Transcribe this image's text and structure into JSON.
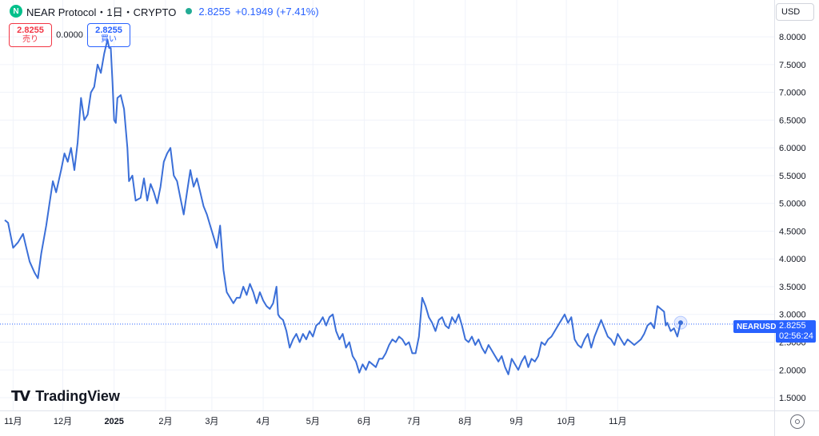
{
  "header": {
    "logo_letter": "N",
    "title": "NEAR Protocol・1日・CRYPTO",
    "price": "2.8255",
    "change": "+0.1949",
    "change_pct": "(+7.41%)"
  },
  "quote": {
    "sell_value": "2.8255",
    "sell_label": "売り",
    "spread": "0.0000",
    "buy_value": "2.8255",
    "buy_label": "買い"
  },
  "currency": "USD",
  "watermark": {
    "icon": "TV",
    "text": "TradingView"
  },
  "last_price": {
    "symbol_label": "NEARUSD",
    "value": "2.8255",
    "countdown": "02:56:24"
  },
  "colors": {
    "line": "#3b6fd8",
    "accent": "#2962ff",
    "sell": "#f23645",
    "grid": "#f0f3fa",
    "logo": "#00c08b"
  },
  "chart_data": {
    "type": "line",
    "series": [
      {
        "values": [
          [
            0,
            4.7
          ],
          [
            2,
            4.65
          ],
          [
            5,
            4.2
          ],
          [
            8,
            4.3
          ],
          [
            11,
            4.45
          ],
          [
            13,
            4.2
          ],
          [
            15,
            3.95
          ],
          [
            18,
            3.75
          ],
          [
            20,
            3.65
          ],
          [
            22,
            4.1
          ],
          [
            25,
            4.6
          ],
          [
            27,
            5.0
          ],
          [
            29,
            5.4
          ],
          [
            31,
            5.2
          ],
          [
            34,
            5.6
          ],
          [
            36,
            5.9
          ],
          [
            38,
            5.75
          ],
          [
            40,
            6.0
          ],
          [
            42,
            5.6
          ],
          [
            44,
            6.1
          ],
          [
            46,
            6.9
          ],
          [
            48,
            6.5
          ],
          [
            50,
            6.6
          ],
          [
            52,
            7.0
          ],
          [
            54,
            7.1
          ],
          [
            56,
            7.5
          ],
          [
            58,
            7.35
          ],
          [
            60,
            7.7
          ],
          [
            62,
            7.95
          ],
          [
            63,
            7.8
          ],
          [
            64,
            7.8
          ],
          [
            65,
            7.2
          ],
          [
            66,
            6.5
          ],
          [
            67,
            6.45
          ],
          [
            68,
            6.9
          ],
          [
            70,
            6.95
          ],
          [
            72,
            6.7
          ],
          [
            74,
            6.0
          ],
          [
            75,
            5.4
          ],
          [
            77,
            5.5
          ],
          [
            79,
            5.05
          ],
          [
            82,
            5.1
          ],
          [
            84,
            5.45
          ],
          [
            86,
            5.05
          ],
          [
            88,
            5.35
          ],
          [
            90,
            5.2
          ],
          [
            92,
            5.0
          ],
          [
            94,
            5.3
          ],
          [
            96,
            5.75
          ],
          [
            98,
            5.9
          ],
          [
            100,
            6.0
          ],
          [
            102,
            5.5
          ],
          [
            104,
            5.4
          ],
          [
            106,
            5.1
          ],
          [
            108,
            4.8
          ],
          [
            110,
            5.2
          ],
          [
            112,
            5.6
          ],
          [
            114,
            5.3
          ],
          [
            116,
            5.45
          ],
          [
            118,
            5.2
          ],
          [
            120,
            4.95
          ],
          [
            122,
            4.8
          ],
          [
            124,
            4.6
          ],
          [
            126,
            4.4
          ],
          [
            128,
            4.2
          ],
          [
            130,
            4.6
          ],
          [
            132,
            3.8
          ],
          [
            134,
            3.4
          ],
          [
            136,
            3.3
          ],
          [
            138,
            3.2
          ],
          [
            140,
            3.3
          ],
          [
            142,
            3.3
          ],
          [
            144,
            3.5
          ],
          [
            146,
            3.35
          ],
          [
            148,
            3.55
          ],
          [
            150,
            3.4
          ],
          [
            152,
            3.2
          ],
          [
            154,
            3.4
          ],
          [
            156,
            3.25
          ],
          [
            158,
            3.15
          ],
          [
            160,
            3.1
          ],
          [
            162,
            3.2
          ],
          [
            164,
            3.5
          ],
          [
            165,
            3.0
          ],
          [
            166,
            2.95
          ],
          [
            168,
            2.9
          ],
          [
            170,
            2.7
          ],
          [
            172,
            2.4
          ],
          [
            174,
            2.55
          ],
          [
            176,
            2.65
          ],
          [
            178,
            2.5
          ],
          [
            180,
            2.65
          ],
          [
            182,
            2.55
          ],
          [
            184,
            2.7
          ],
          [
            186,
            2.6
          ],
          [
            188,
            2.8
          ],
          [
            190,
            2.85
          ],
          [
            192,
            2.95
          ],
          [
            194,
            2.8
          ],
          [
            196,
            2.95
          ],
          [
            198,
            3.0
          ],
          [
            200,
            2.7
          ],
          [
            202,
            2.55
          ],
          [
            204,
            2.65
          ],
          [
            206,
            2.4
          ],
          [
            208,
            2.5
          ],
          [
            210,
            2.25
          ],
          [
            212,
            2.15
          ],
          [
            214,
            1.95
          ],
          [
            216,
            2.1
          ],
          [
            218,
            2.0
          ],
          [
            220,
            2.15
          ],
          [
            222,
            2.1
          ],
          [
            224,
            2.05
          ],
          [
            226,
            2.2
          ],
          [
            228,
            2.2
          ],
          [
            230,
            2.3
          ],
          [
            232,
            2.45
          ],
          [
            234,
            2.55
          ],
          [
            236,
            2.5
          ],
          [
            238,
            2.6
          ],
          [
            240,
            2.55
          ],
          [
            242,
            2.45
          ],
          [
            244,
            2.5
          ],
          [
            246,
            2.3
          ],
          [
            248,
            2.3
          ],
          [
            250,
            2.6
          ],
          [
            252,
            3.3
          ],
          [
            254,
            3.15
          ],
          [
            256,
            2.95
          ],
          [
            258,
            2.85
          ],
          [
            260,
            2.7
          ],
          [
            262,
            2.9
          ],
          [
            264,
            2.95
          ],
          [
            266,
            2.8
          ],
          [
            268,
            2.75
          ],
          [
            270,
            2.95
          ],
          [
            272,
            2.85
          ],
          [
            274,
            3.0
          ],
          [
            276,
            2.8
          ],
          [
            278,
            2.55
          ],
          [
            280,
            2.5
          ],
          [
            282,
            2.6
          ],
          [
            284,
            2.45
          ],
          [
            286,
            2.55
          ],
          [
            288,
            2.4
          ],
          [
            290,
            2.3
          ],
          [
            292,
            2.45
          ],
          [
            294,
            2.35
          ],
          [
            296,
            2.25
          ],
          [
            298,
            2.15
          ],
          [
            300,
            2.25
          ],
          [
            302,
            2.05
          ],
          [
            304,
            1.92
          ],
          [
            306,
            2.2
          ],
          [
            308,
            2.1
          ],
          [
            310,
            2.0
          ],
          [
            312,
            2.15
          ],
          [
            314,
            2.25
          ],
          [
            316,
            2.05
          ],
          [
            318,
            2.2
          ],
          [
            320,
            2.15
          ],
          [
            322,
            2.25
          ],
          [
            324,
            2.5
          ],
          [
            326,
            2.45
          ],
          [
            328,
            2.55
          ],
          [
            330,
            2.6
          ],
          [
            332,
            2.7
          ],
          [
            334,
            2.8
          ],
          [
            336,
            2.9
          ],
          [
            338,
            3.0
          ],
          [
            340,
            2.85
          ],
          [
            342,
            2.95
          ],
          [
            344,
            2.55
          ],
          [
            346,
            2.45
          ],
          [
            348,
            2.4
          ],
          [
            350,
            2.55
          ],
          [
            352,
            2.65
          ],
          [
            354,
            2.4
          ],
          [
            356,
            2.6
          ],
          [
            358,
            2.75
          ],
          [
            360,
            2.9
          ],
          [
            362,
            2.75
          ],
          [
            364,
            2.6
          ],
          [
            366,
            2.55
          ],
          [
            368,
            2.45
          ],
          [
            370,
            2.65
          ],
          [
            372,
            2.55
          ],
          [
            374,
            2.45
          ],
          [
            376,
            2.55
          ],
          [
            378,
            2.5
          ],
          [
            380,
            2.45
          ],
          [
            382,
            2.5
          ],
          [
            384,
            2.55
          ],
          [
            386,
            2.65
          ],
          [
            388,
            2.8
          ],
          [
            390,
            2.85
          ],
          [
            392,
            2.75
          ],
          [
            394,
            3.15
          ],
          [
            396,
            3.1
          ],
          [
            398,
            3.05
          ],
          [
            399,
            2.8
          ],
          [
            400,
            2.85
          ],
          [
            402,
            2.7
          ],
          [
            404,
            2.75
          ],
          [
            406,
            2.6
          ],
          [
            408,
            2.85
          ]
        ]
      }
    ],
    "x_ticks": [
      {
        "x": 5,
        "label": "11月"
      },
      {
        "x": 35,
        "label": "12月"
      },
      {
        "x": 66,
        "label": "2025"
      },
      {
        "x": 97,
        "label": "2月"
      },
      {
        "x": 125,
        "label": "3月"
      },
      {
        "x": 156,
        "label": "4月"
      },
      {
        "x": 186,
        "label": "5月"
      },
      {
        "x": 217,
        "label": "6月"
      },
      {
        "x": 247,
        "label": "7月"
      },
      {
        "x": 278,
        "label": "8月"
      },
      {
        "x": 309,
        "label": "9月"
      },
      {
        "x": 339,
        "label": "10月"
      },
      {
        "x": 370,
        "label": "11月"
      }
    ],
    "y_ticks": [
      "1.5000",
      "2.0000",
      "2.5000",
      "3.0000",
      "3.5000",
      "4.0000",
      "4.5000",
      "5.0000",
      "5.5000",
      "6.0000",
      "6.5000",
      "7.0000",
      "7.5000",
      "8.0000"
    ],
    "last_value": 2.8255,
    "xlim": [
      0,
      412
    ],
    "ylim": [
      1.27,
      8.52
    ]
  }
}
